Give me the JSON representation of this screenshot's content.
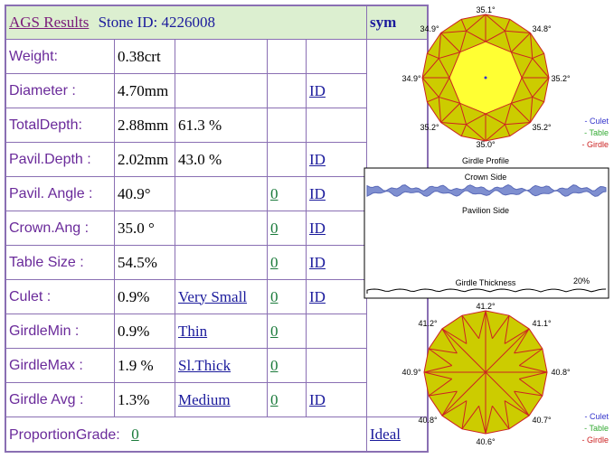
{
  "header": {
    "title": "AGS  Results",
    "stone_label": "Stone ID:  4226008",
    "sym": "sym"
  },
  "rows": [
    {
      "label": "Weight:",
      "v1": "0.38crt",
      "v2": "",
      "link2": "",
      "g": "",
      "id": ""
    },
    {
      "label": "Diameter :",
      "v1": "4.70mm",
      "v2": "",
      "link2": "",
      "g": "",
      "id": "ID"
    },
    {
      "label": "TotalDepth:",
      "v1": "2.88mm",
      "v2": "61.3 %",
      "link2": "",
      "g": "",
      "id": ""
    },
    {
      "label": "Pavil.Depth :",
      "v1": "2.02mm",
      "v2": "43.0 %",
      "link2": "",
      "g": "",
      "id": "ID"
    },
    {
      "label": "Pavil. Angle :",
      "v1": "40.9°",
      "v2": "",
      "link2": "",
      "g": "0",
      "id": "ID "
    },
    {
      "label": "Crown.Ang :",
      "v1": "35.0 °",
      "v2": "",
      "link2": "",
      "g": "0",
      "id": "ID"
    },
    {
      "label": "Table Size :",
      "v1": "54.5%",
      "v2": "",
      "link2": "",
      "g": "0",
      "id": "ID"
    },
    {
      "label": "Culet :",
      "v1": "0.9%",
      "v2": "",
      "link2": "Very Small",
      "g": "0",
      "id": "ID"
    },
    {
      "label": "GirdleMin :",
      "v1": "0.9%",
      "v2": "",
      "link2": "Thin",
      "g": "0",
      "id": ""
    },
    {
      "label": "GirdleMax :",
      "v1": "1.9 %",
      "v2": "",
      "link2": "Sl.Thick ",
      "g": "0",
      "id": ""
    },
    {
      "label": "Girdle Avg :",
      "v1": "1.3%",
      "v2": "",
      "link2": "Medium ",
      "g": "0",
      "id": "ID "
    }
  ],
  "proportion": {
    "label": "ProportionGrade:",
    "value": "0",
    "grade": "Ideal "
  },
  "crown": {
    "top": "35.1°",
    "tl": "34.9°",
    "tr": "34.8°",
    "ml": "34.9°",
    "mr": "35.2°",
    "bl": "35.2°",
    "br": "35.2°",
    "bottom": "35.0°"
  },
  "pavilion": {
    "top": "41.2°",
    "tl": "41.2°",
    "tr": "41.1°",
    "ml": "40.9°",
    "mr": "40.8°",
    "bl": "40.8°",
    "br": "40.7°",
    "bottom": "40.6°"
  },
  "legend": {
    "culet": "- Culet",
    "table": "- Table",
    "girdle": "- Girdle"
  },
  "profile": {
    "title": "Girdle Profile",
    "crown_side": "Crown Side",
    "pavilion_side": "Pavilion Side",
    "thickness": "Girdle Thickness",
    "percent": "20%"
  },
  "colors": {
    "label": "#6a2a9a",
    "border": "#8a6fb3",
    "header_bg": "#dcefd0",
    "stone_fill": "#cccc00",
    "table_fill": "#ffff33",
    "facet_line": "#cc2222",
    "culet": "#3333cc",
    "table": "#33aa33",
    "girdle": "#cc2222"
  }
}
